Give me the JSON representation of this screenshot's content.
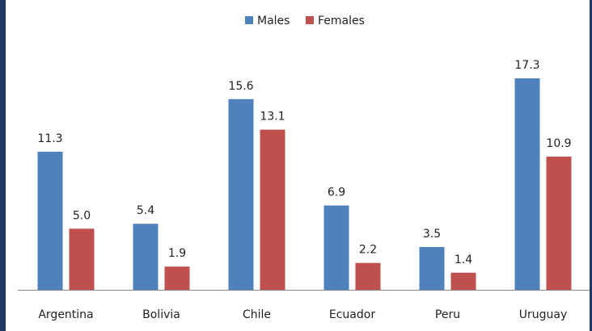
{
  "chart_data": {
    "type": "bar",
    "categories": [
      "Argentina",
      "Bolivia",
      "Chile",
      "Ecuador",
      "Peru",
      "Uruguay"
    ],
    "series": [
      {
        "name": "Males",
        "color": "#4f81bd",
        "values": [
          11.3,
          5.4,
          15.6,
          6.9,
          3.5,
          17.3
        ],
        "value_labels": [
          "11.3",
          "5.4",
          "15.6",
          "6.9",
          "3.5",
          "17.3"
        ]
      },
      {
        "name": "Females",
        "color": "#c0504d",
        "values": [
          5.0,
          1.9,
          13.1,
          2.2,
          1.4,
          10.9
        ],
        "value_labels": [
          "5.0",
          "1.9",
          "13.1",
          "2.2",
          "1.4",
          "10.9"
        ]
      }
    ],
    "ylim": [
      0,
      21
    ],
    "legend": "top"
  }
}
